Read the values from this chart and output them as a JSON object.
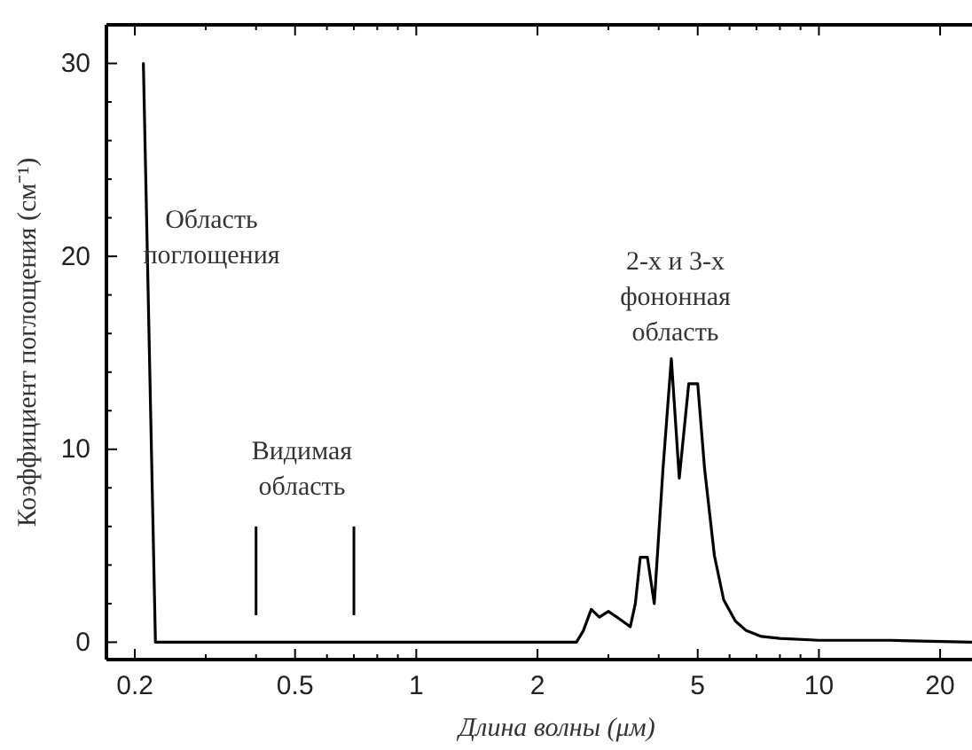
{
  "chart_data": {
    "type": "line",
    "xlabel": "Длина волны (μм)",
    "ylabel": "Коэффициент поглощения (см⁻¹)",
    "log": "x",
    "xlim": [
      0.17,
      24
    ],
    "ylim": [
      -0.9,
      32
    ],
    "xticks": [
      0.2,
      {
        "value": 0.3,
        "label": null
      },
      {
        "value": 0.4,
        "label": null
      },
      0.5,
      {
        "value": 0.6,
        "label": null
      },
      {
        "value": 0.7,
        "label": null
      },
      {
        "value": 0.8,
        "label": null
      },
      {
        "value": 0.9,
        "label": null
      },
      1,
      2,
      {
        "value": 3,
        "label": null
      },
      {
        "value": 4,
        "label": null
      },
      5,
      {
        "value": 6,
        "label": null
      },
      {
        "value": 7,
        "label": null
      },
      {
        "value": 8,
        "label": null
      },
      {
        "value": 9,
        "label": null
      },
      10,
      20
    ],
    "yticks": [
      0,
      {
        "value": 2,
        "label": null
      },
      {
        "value": 4,
        "label": null
      },
      {
        "value": 6,
        "label": null
      },
      {
        "value": 8,
        "label": null
      },
      10,
      {
        "value": 12,
        "label": null
      },
      {
        "value": 14,
        "label": null
      },
      {
        "value": 16,
        "label": null
      },
      {
        "value": 18,
        "label": null
      },
      20,
      {
        "value": 22,
        "label": null
      },
      {
        "value": 24,
        "label": null
      },
      {
        "value": 26,
        "label": null
      },
      {
        "value": 28,
        "label": null
      },
      30
    ],
    "series": [
      {
        "color": "#000000",
        "x": [
          0.21,
          0.225,
          1,
          2.5,
          2.6,
          2.72,
          2.85,
          3.0,
          3.2,
          3.4,
          3.5,
          3.6,
          3.75,
          3.9,
          4.1,
          4.3,
          4.5,
          4.75,
          5.0,
          5.2,
          5.5,
          5.8,
          6.2,
          6.6,
          7.2,
          8,
          10,
          15,
          24
        ],
        "values": [
          30,
          0,
          0,
          0,
          0.6,
          1.7,
          1.3,
          1.6,
          1.2,
          0.8,
          2.0,
          4.4,
          4.4,
          2.0,
          9,
          14.7,
          8.5,
          13.4,
          13.4,
          9,
          4.5,
          2.2,
          1.1,
          0.6,
          0.3,
          0.2,
          0.1,
          0.1,
          0
        ]
      }
    ],
    "ref_lines": [
      {
        "axis": "x",
        "value": 0.4
      },
      {
        "axis": "x",
        "value": 0.7
      }
    ],
    "annotations": [
      "Область\nпоглощения",
      "Видимая\nобласть",
      "2-х и 3-х\nфононная\nобласть"
    ],
    "grid": false,
    "line_style": "solid",
    "marker": "none"
  }
}
